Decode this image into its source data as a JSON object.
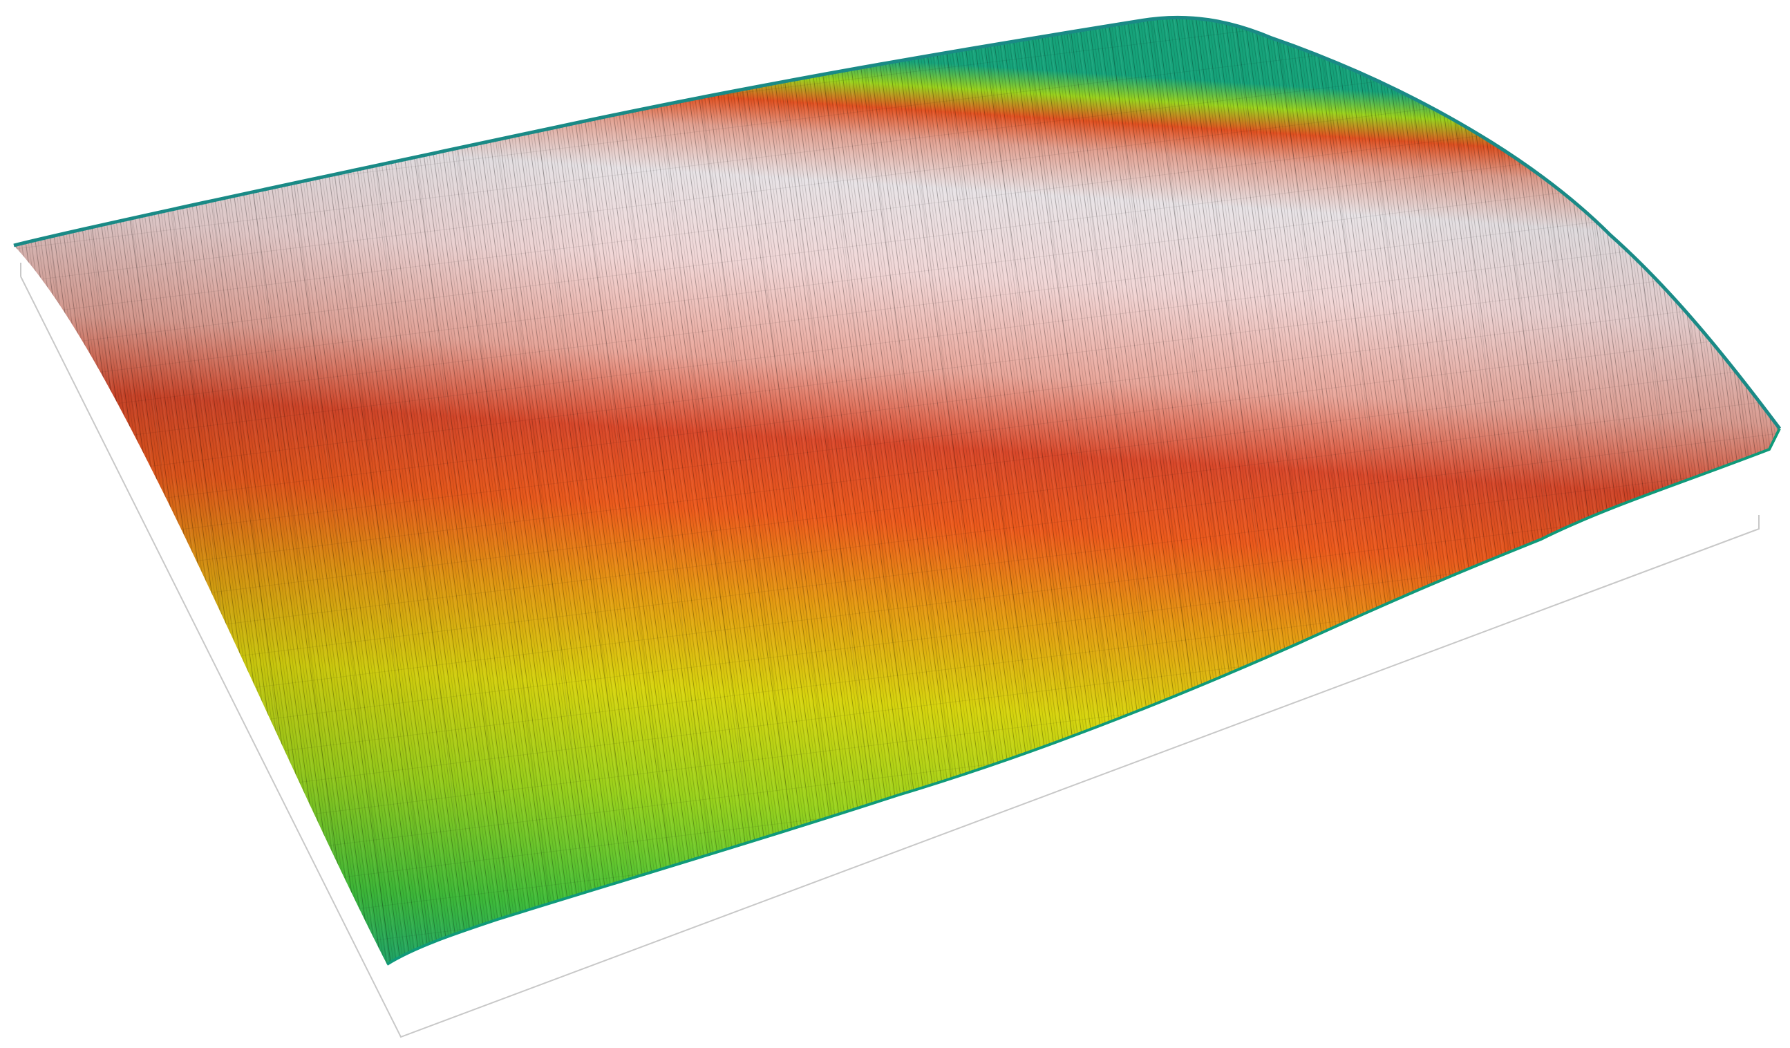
{
  "surface_plot": {
    "colormap": [
      "#0e6f8a",
      "#16a37a",
      "#3fbe3a",
      "#9ad21c",
      "#d7d40e",
      "#e59a12",
      "#ec5a1c",
      "#d9482a",
      "#e9a69a",
      "#f1d6d6",
      "#e8e3e6"
    ],
    "base_outline_color": "#c8c8c8",
    "texture": "vertical-streaks"
  }
}
